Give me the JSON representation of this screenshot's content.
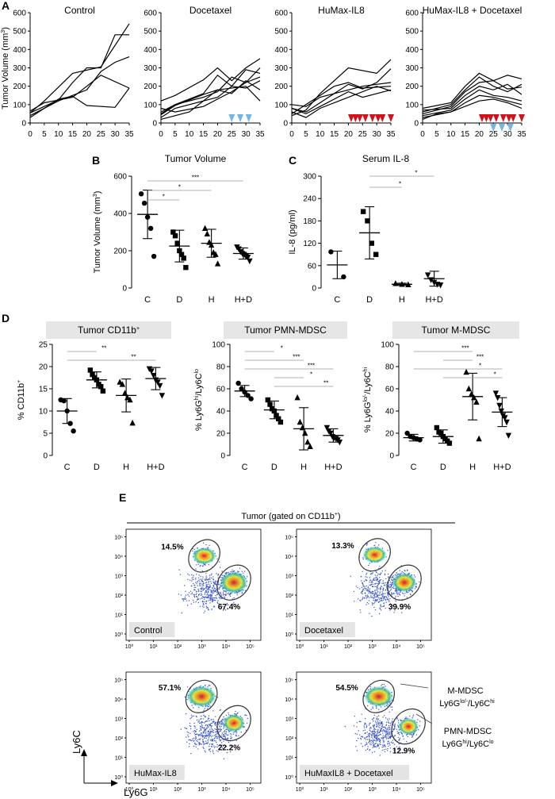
{
  "panel_letters": [
    "A",
    "B",
    "C",
    "D",
    "E"
  ],
  "panel_a": {
    "ylabel_html": "Tumor Volume (mm<tspan font-size='7' dy='-4'>3</tspan><tspan dy='4'>)</tspan>",
    "ylabel": "Tumor Volume (mm3)",
    "x_ticks": [
      "0",
      "5",
      "10",
      "15",
      "20",
      "25",
      "30",
      "35"
    ],
    "y_ticks": [
      "0",
      "100",
      "200",
      "300",
      "400",
      "500",
      "600"
    ],
    "markers": {
      "red": "#d0121b",
      "blue": "#73b5e4"
    }
  },
  "panel_b": {
    "title": "Tumor Volume",
    "ylabel": "Tumor Volume (mm3)"
  },
  "panel_c": {
    "title": "Serum IL-8",
    "ylabel": "IL-8 (pg/ml)"
  },
  "panel_d": {
    "titles": [
      "Tumor CD11b+",
      "Tumor PMN-MDSC",
      "Tumor M-MDSC"
    ],
    "ylabels": [
      "% CD11b+",
      "% Ly6Ghi/Ly6Clo",
      "% Ly6Glo/-/Ly6Chi"
    ]
  },
  "panel_e": {
    "header": "Tumor (gated on CD11b+)",
    "y_axis": "Ly6C",
    "x_axis": "Ly6G",
    "tick_labels": [
      "10⁰",
      "10¹",
      "10²",
      "10³",
      "10⁴",
      "10⁵"
    ],
    "plots": [
      {
        "label": "Control",
        "upper": "14.5%",
        "lower": "67.4%"
      },
      {
        "label": "Docetaxel",
        "upper": "13.3%",
        "lower": "39.9%"
      },
      {
        "label": "HuMax-IL8",
        "upper": "57.1%",
        "lower": "22.2%"
      },
      {
        "label": "HuMaxIL8 + Docetaxel",
        "upper": "54.5%",
        "lower": "12.9%"
      }
    ],
    "gate_labels": [
      {
        "name": "M-MDSC",
        "sub": "Ly6Glo/-/Ly6Chi"
      },
      {
        "name": "PMN-MDSC",
        "sub": "Ly6Ghi/Ly6Clo"
      }
    ]
  },
  "chart_data": [
    {
      "type": "line",
      "title": "Control",
      "ylim": [
        0,
        600
      ],
      "xlim": [
        0,
        35
      ],
      "series": [
        {
          "x": [
            0,
            10,
            15,
            20,
            25,
            30,
            35
          ],
          "y": [
            55,
            125,
            220,
            300,
            300,
            480,
            480
          ]
        },
        {
          "x": [
            0,
            5,
            15,
            25,
            35
          ],
          "y": [
            55,
            120,
            270,
            305,
            540
          ]
        },
        {
          "x": [
            0,
            10,
            20,
            25,
            30,
            35
          ],
          "y": [
            40,
            120,
            180,
            280,
            330,
            360
          ]
        },
        {
          "x": [
            0,
            10,
            15,
            20,
            30,
            35
          ],
          "y": [
            30,
            130,
            145,
            95,
            85,
            190
          ]
        },
        {
          "x": [
            0,
            5,
            15,
            25,
            35
          ],
          "y": [
            65,
            110,
            140,
            260,
            190
          ]
        }
      ]
    },
    {
      "type": "line",
      "title": "Docetaxel",
      "ylim": [
        0,
        600
      ],
      "xlim": [
        0,
        35
      ],
      "treatment_days": {
        "blue": [
          25,
          28,
          31
        ]
      },
      "series": [
        {
          "x": [
            0,
            5,
            15,
            20,
            25,
            30,
            35
          ],
          "y": [
            120,
            150,
            235,
            300,
            230,
            300,
            350
          ]
        },
        {
          "x": [
            0,
            5,
            15,
            20,
            25,
            30,
            35
          ],
          "y": [
            60,
            100,
            160,
            260,
            200,
            290,
            270
          ]
        },
        {
          "x": [
            0,
            5,
            15,
            20,
            25,
            30,
            35
          ],
          "y": [
            50,
            100,
            140,
            170,
            250,
            220,
            300
          ]
        },
        {
          "x": [
            0,
            5,
            15,
            20,
            25,
            30,
            35
          ],
          "y": [
            30,
            80,
            120,
            140,
            200,
            190,
            230
          ]
        },
        {
          "x": [
            0,
            5,
            15,
            20,
            25,
            30,
            35
          ],
          "y": [
            45,
            95,
            155,
            180,
            160,
            230,
            180
          ]
        },
        {
          "x": [
            0,
            5,
            15,
            20,
            25,
            30,
            35
          ],
          "y": [
            80,
            60,
            90,
            130,
            170,
            220,
            250
          ]
        },
        {
          "x": [
            0,
            10,
            20,
            30,
            35
          ],
          "y": [
            20,
            60,
            180,
            200,
            120
          ]
        }
      ]
    },
    {
      "type": "line",
      "title": "HuMax-IL8",
      "ylim": [
        0,
        600
      ],
      "xlim": [
        0,
        35
      ],
      "treatment_days": {
        "red": [
          21,
          22.5,
          24,
          26,
          28.5,
          30.5,
          32,
          35
        ]
      },
      "series": [
        {
          "x": [
            0,
            5,
            10,
            20,
            30,
            35
          ],
          "y": [
            40,
            70,
            160,
            300,
            270,
            345
          ]
        },
        {
          "x": [
            0,
            5,
            10,
            20,
            25,
            30,
            35
          ],
          "y": [
            80,
            60,
            110,
            210,
            185,
            220,
            295
          ]
        },
        {
          "x": [
            0,
            5,
            10,
            15,
            20,
            25,
            35
          ],
          "y": [
            50,
            100,
            150,
            200,
            220,
            190,
            200
          ]
        },
        {
          "x": [
            0,
            5,
            10,
            15,
            20,
            25,
            30,
            35
          ],
          "y": [
            100,
            90,
            140,
            160,
            180,
            200,
            210,
            220
          ]
        },
        {
          "x": [
            0,
            5,
            10,
            20,
            25,
            35
          ],
          "y": [
            80,
            50,
            90,
            170,
            140,
            180
          ]
        },
        {
          "x": [
            0,
            5,
            10,
            20,
            30,
            35
          ],
          "y": [
            60,
            30,
            80,
            140,
            200,
            175
          ]
        }
      ]
    },
    {
      "type": "line",
      "title": "HuMax-IL8 + Docetaxel",
      "ylim": [
        0,
        600
      ],
      "xlim": [
        0,
        35
      ],
      "treatment_days": {
        "red": [
          21,
          22.5,
          24,
          26,
          28.5,
          30.5,
          32,
          35
        ],
        "blue": [
          25,
          28,
          31
        ]
      },
      "series": [
        {
          "x": [
            0,
            10,
            15,
            20,
            25,
            30,
            35
          ],
          "y": [
            80,
            110,
            200,
            270,
            230,
            260,
            240
          ]
        },
        {
          "x": [
            0,
            10,
            15,
            20,
            25,
            30,
            35
          ],
          "y": [
            60,
            100,
            180,
            250,
            200,
            170,
            210
          ]
        },
        {
          "x": [
            0,
            10,
            15,
            20,
            25,
            30,
            35
          ],
          "y": [
            50,
            90,
            170,
            220,
            230,
            185,
            195
          ]
        },
        {
          "x": [
            0,
            10,
            15,
            20,
            25,
            30,
            35
          ],
          "y": [
            70,
            80,
            150,
            200,
            180,
            210,
            155
          ]
        },
        {
          "x": [
            0,
            10,
            15,
            20,
            25,
            30,
            35
          ],
          "y": [
            40,
            70,
            130,
            180,
            150,
            140,
            120
          ]
        },
        {
          "x": [
            0,
            10,
            15,
            20,
            25,
            30,
            35
          ],
          "y": [
            30,
            60,
            110,
            150,
            140,
            120,
            100
          ]
        },
        {
          "x": [
            0,
            5,
            10,
            20,
            25,
            30,
            35
          ],
          "y": [
            20,
            50,
            60,
            120,
            130,
            110,
            80
          ]
        }
      ]
    },
    {
      "type": "scatter",
      "title": "Tumor Volume",
      "ylabel": "Tumor Volume (mm3)",
      "categories": [
        "C",
        "D",
        "H",
        "H+D"
      ],
      "ylim": [
        0,
        600
      ],
      "y_ticks": [
        0,
        200,
        400,
        600
      ],
      "markers": [
        "circle",
        "square",
        "triangle-up",
        "triangle-down"
      ],
      "points": [
        [
          505,
          455,
          380,
          320,
          170
        ],
        [
          300,
          280,
          240,
          200,
          180,
          160,
          110
        ],
        [
          320,
          290,
          245,
          230,
          190,
          180,
          130
        ],
        [
          220,
          210,
          195,
          185,
          180,
          170,
          165,
          145
        ]
      ],
      "mean": [
        395,
        225,
        240,
        185
      ],
      "sd": [
        130,
        85,
        75,
        30
      ],
      "significance": [
        [
          "C",
          "D",
          "*"
        ],
        [
          "C",
          "H",
          "*"
        ],
        [
          "C",
          "H+D",
          "***"
        ]
      ]
    },
    {
      "type": "scatter",
      "title": "Serum IL-8",
      "ylabel": "IL-8 (pg/ml)",
      "categories": [
        "C",
        "D",
        "H",
        "H+D"
      ],
      "ylim": [
        0,
        300
      ],
      "y_ticks": [
        0,
        60,
        120,
        180,
        240,
        300
      ],
      "markers": [
        "circle",
        "square",
        "triangle-up",
        "triangle-down"
      ],
      "points": [
        [
          97,
          30
        ],
        [
          205,
          180,
          120,
          90
        ],
        [
          12,
          10,
          9
        ],
        [
          35,
          22,
          15,
          10,
          8
        ]
      ],
      "mean": [
        62,
        148,
        10,
        25
      ],
      "sd": [
        37,
        70,
        3,
        20
      ],
      "significance": [
        [
          "D",
          "H",
          "*"
        ],
        [
          "D",
          "H+D",
          "*"
        ]
      ]
    },
    {
      "type": "scatter",
      "title": "Tumor CD11b+",
      "ylabel": "% CD11b+",
      "categories": [
        "C",
        "D",
        "H",
        "H+D"
      ],
      "ylim": [
        0,
        25
      ],
      "y_ticks": [
        0,
        5,
        10,
        15,
        20,
        25
      ],
      "markers": [
        "circle",
        "square",
        "triangle-up",
        "triangle-down"
      ],
      "points": [
        [
          12.5,
          12.3,
          10,
          7.2,
          5.5
        ],
        [
          19.2,
          18.2,
          17.5,
          17,
          16,
          15.5,
          14.5
        ],
        [
          16.5,
          16,
          14,
          13,
          12.5,
          7.3
        ],
        [
          19.5,
          19,
          18,
          17,
          16.5,
          15.7,
          13.5
        ]
      ],
      "mean": [
        10,
        17,
        13.5,
        17.3
      ],
      "sd": [
        2.8,
        1.8,
        3.7,
        2.5
      ],
      "significance": [
        [
          "C",
          "D",
          "**"
        ],
        [
          "C",
          "H+D",
          "**"
        ]
      ]
    },
    {
      "type": "scatter",
      "title": "Tumor PMN-MDSC",
      "ylabel": "% Ly6Ghi/Ly6Clo",
      "categories": [
        "C",
        "D",
        "H",
        "H+D"
      ],
      "ylim": [
        0,
        100
      ],
      "y_ticks": [
        0,
        20,
        40,
        60,
        80,
        100
      ],
      "markers": [
        "circle",
        "square",
        "triangle-up",
        "triangle-down"
      ],
      "points": [
        [
          65,
          60,
          57,
          54,
          51
        ],
        [
          50,
          46,
          42,
          40,
          36,
          33,
          30
        ],
        [
          52,
          30,
          25,
          20,
          12,
          8
        ],
        [
          25,
          22,
          20,
          17,
          16,
          15,
          14,
          12
        ]
      ],
      "mean": [
        58,
        41,
        24,
        18
      ],
      "sd": [
        5,
        8,
        19,
        6
      ],
      "significance": [
        [
          "C",
          "D",
          "*"
        ],
        [
          "C",
          "H",
          "***"
        ],
        [
          "C",
          "H+D",
          "***"
        ],
        [
          "D",
          "H",
          "*"
        ],
        [
          "D",
          "H+D",
          "**"
        ]
      ]
    },
    {
      "type": "scatter",
      "title": "Tumor M-MDSC",
      "ylabel": "% Ly6Glo/-/Ly6Chi",
      "categories": [
        "C",
        "D",
        "H",
        "H+D"
      ],
      "ylim": [
        0,
        100
      ],
      "y_ticks": [
        0,
        20,
        40,
        60,
        80,
        100
      ],
      "markers": [
        "circle",
        "square",
        "triangle-up",
        "triangle-down"
      ],
      "points": [
        [
          20,
          17,
          16,
          15,
          14
        ],
        [
          25,
          21,
          20,
          17,
          15,
          13,
          11
        ],
        [
          75,
          60,
          55,
          52,
          48,
          15
        ],
        [
          56,
          52,
          45,
          40,
          36,
          34,
          30,
          18
        ]
      ],
      "mean": [
        16,
        17,
        53,
        39
      ],
      "sd": [
        3,
        6,
        21,
        13
      ],
      "significance": [
        [
          "C",
          "H",
          "***"
        ],
        [
          "D",
          "H",
          "***"
        ],
        [
          "C",
          "H+D",
          "*"
        ],
        [
          "D",
          "H+D",
          "*"
        ]
      ]
    }
  ]
}
